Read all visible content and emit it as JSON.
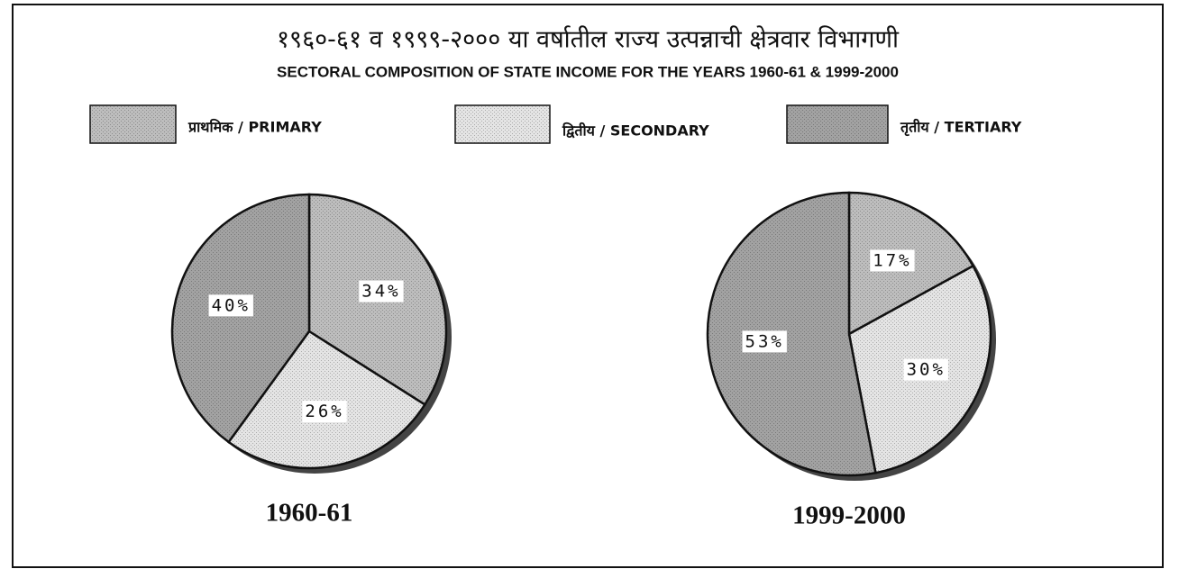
{
  "header": {
    "title": "१९६०-६१ व १९९९-२००० या वर्षातील राज्य उत्पन्नाची क्षेत्रवार विभागणी",
    "subtitle": "SECTORAL COMPOSITION OF STATE INCOME FOR THE YEARS 1960-61 & 1999-2000"
  },
  "chart_data": [
    {
      "type": "pie",
      "title": "1960-61",
      "categories": [
        "प्राथमिक / PRIMARY",
        "द्वितीय / SECONDARY",
        "तृतीय / TERTIARY"
      ],
      "values": [
        34,
        26,
        40
      ],
      "value_labels": [
        "34%",
        "26%",
        "40%"
      ],
      "colors": [
        "#bdbdbd",
        "#e4e4e4",
        "#a2a2a2"
      ]
    },
    {
      "type": "pie",
      "title": "1999-2000",
      "categories": [
        "प्राथमिक / PRIMARY",
        "द्वितीय / SECONDARY",
        "तृतीय / TERTIARY"
      ],
      "values": [
        17,
        30,
        53
      ],
      "value_labels": [
        "17%",
        "30%",
        "53%"
      ],
      "colors": [
        "#bdbdbd",
        "#e4e4e4",
        "#a2a2a2"
      ]
    }
  ]
}
